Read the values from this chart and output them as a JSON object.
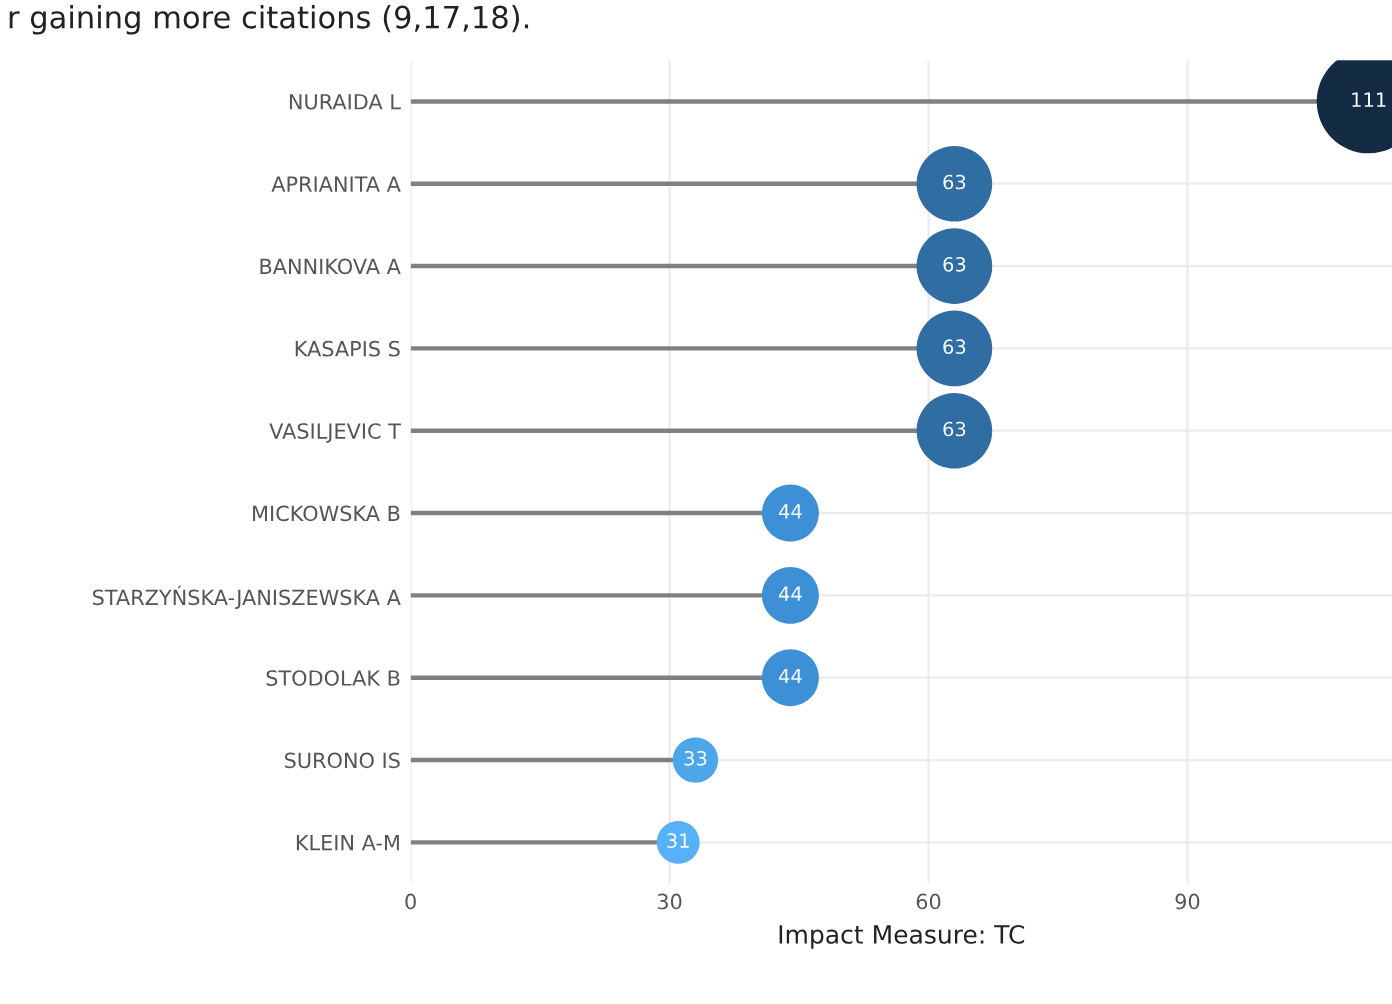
{
  "chart_data": {
    "type": "lollipop",
    "orientation": "horizontal",
    "categories": [
      "NURAIDA L",
      "APRIANITA A",
      "BANNIKOVA A",
      "KASAPIS S",
      "VASILJEVIC T",
      "MICKOWSKA B",
      "STARZYŃSKA-JANISZEWSKA A",
      "STODOLAK B",
      "SURONO IS",
      "KLEIN A-M"
    ],
    "values": [
      111,
      63,
      63,
      63,
      63,
      44,
      44,
      44,
      33,
      31
    ],
    "colors": [
      "#132b43",
      "#2f6da3",
      "#2f6da3",
      "#2f6da3",
      "#2f6da3",
      "#3d8fd6",
      "#3d8fd6",
      "#3d8fd6",
      "#4ba6ea",
      "#56b1f7"
    ],
    "sizes": [
      1,
      0.53,
      0.53,
      0.53,
      0.53,
      0.3,
      0.3,
      0.3,
      0.19,
      0.17
    ],
    "xlabel": "Impact Measure: TC",
    "xlim": [
      0,
      113.7
    ],
    "xticks": [
      0,
      30,
      60,
      90
    ],
    "grid": true,
    "data_labels": true,
    "marker": "circle",
    "annotations": [
      "r gaining more citations (9,17,18)."
    ]
  }
}
